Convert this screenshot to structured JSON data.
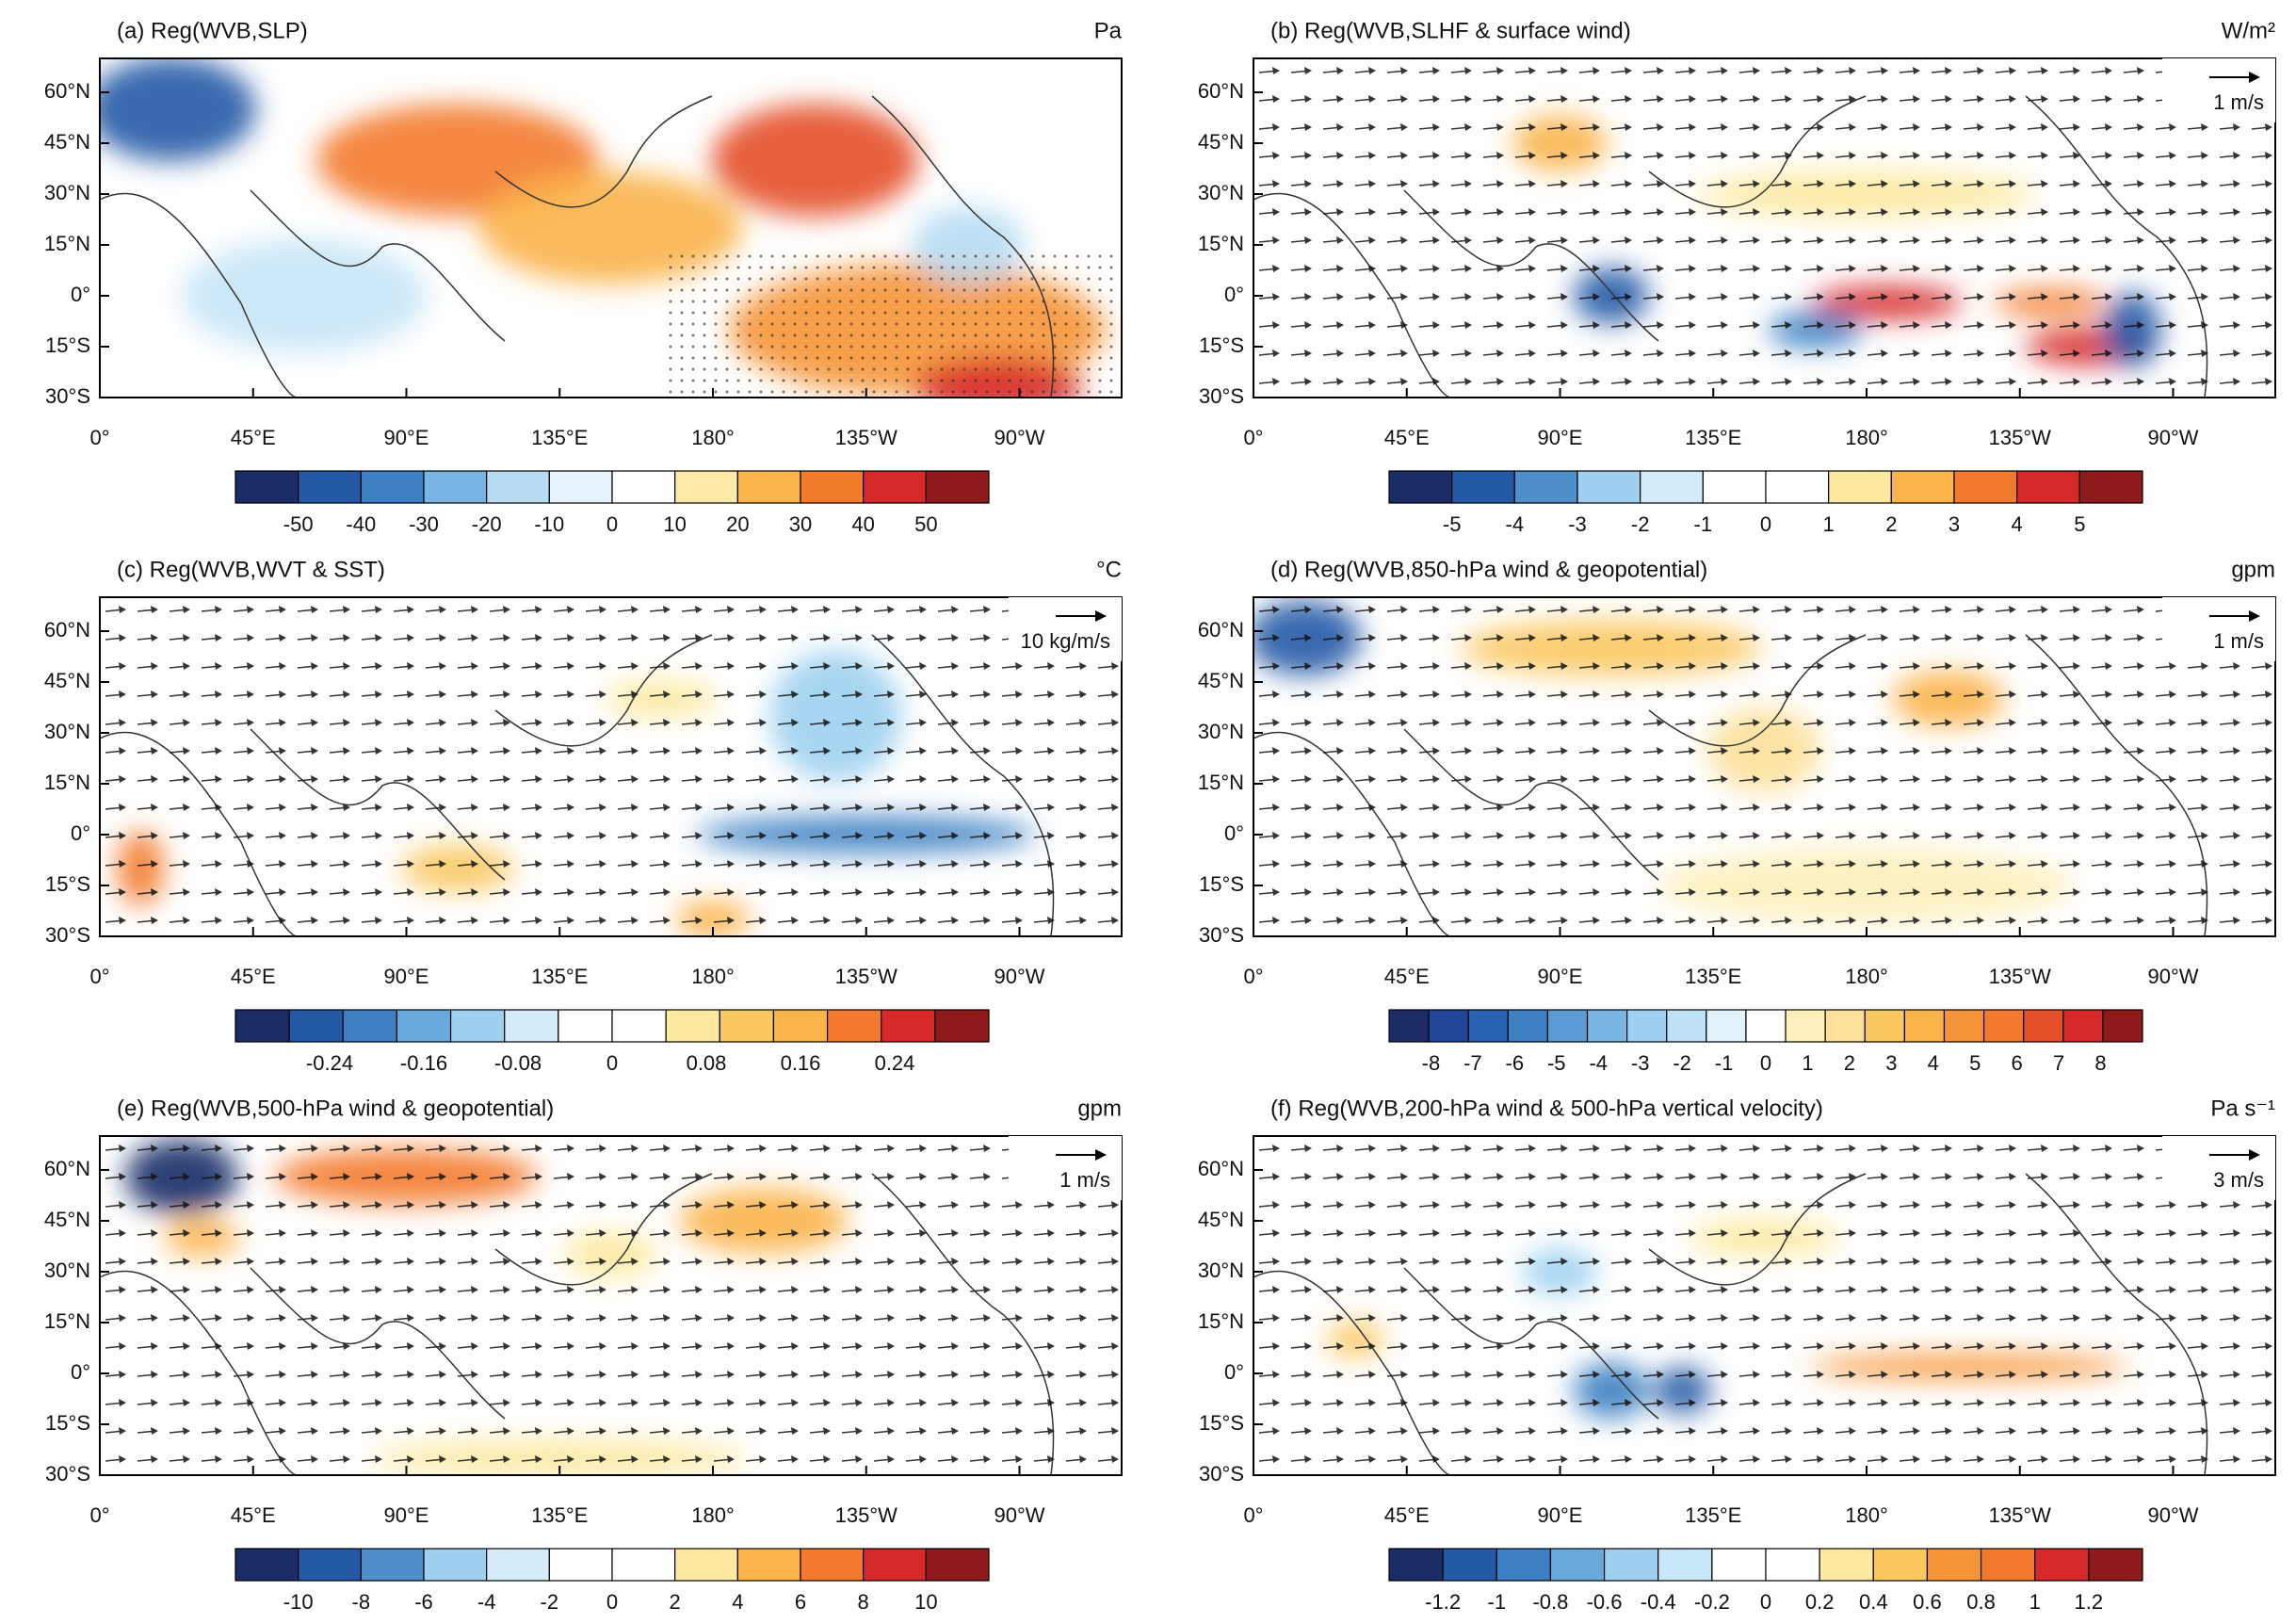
{
  "x_labels": [
    "0°",
    "45°E",
    "90°E",
    "135°E",
    "180°",
    "135°W",
    "90°W"
  ],
  "y_labels": [
    "60°N",
    "45°N",
    "30°N",
    "15°N",
    "0°",
    "15°S",
    "30°S"
  ],
  "panels": [
    {
      "title": "(a) Reg(WVB,SLP)",
      "unit": "Pa",
      "colorbar": {
        "labels": [
          -50,
          -40,
          -30,
          -20,
          -10,
          0,
          10,
          20,
          30,
          40,
          50
        ],
        "colors": [
          "#1b2c66",
          "#2459a6",
          "#3c7fc2",
          "#78b4e4",
          "#b7dbf2",
          "#e6f3fb",
          "#ffffff",
          "#fdeaa6",
          "#fbb54d",
          "#f37b2c",
          "#d6292a",
          "#8e1a1c"
        ]
      }
    },
    {
      "title": "(b) Reg(WVB,SLHF & surface wind)",
      "unit": "W/m²",
      "ref_vector": "1 m/s",
      "colorbar": {
        "labels": [
          -5,
          -4,
          -3,
          -2,
          -1,
          0,
          1,
          2,
          3,
          4,
          5
        ],
        "colors": [
          "#1b2c66",
          "#2459a6",
          "#4e8fcc",
          "#9fd0f0",
          "#d4ecf9",
          "#ffffff",
          "#ffffff",
          "#fde9a0",
          "#fbb44a",
          "#f37a2c",
          "#d6292a",
          "#8e1a1c"
        ]
      }
    },
    {
      "title": "(c) Reg(WVB,WVT & SST)",
      "unit": "°C",
      "ref_vector": "10 kg/m/s",
      "colorbar": {
        "labels": [
          -0.24,
          -0.16,
          -0.08,
          0,
          0.08,
          0.16,
          0.24
        ],
        "colors": [
          "#1b2c66",
          "#2459a6",
          "#3c7fc2",
          "#6aa9de",
          "#9fd0f0",
          "#d4ecf9",
          "#ffffff",
          "#ffffff",
          "#fde9a0",
          "#fbc860",
          "#fbb44a",
          "#f37a2c",
          "#d6292a",
          "#8e1a1c"
        ]
      }
    },
    {
      "title": "(d) Reg(WVB,850-hPa wind & geopotential)",
      "unit": "gpm",
      "ref_vector": "1 m/s",
      "colorbar": {
        "labels": [
          -8,
          -7,
          -6,
          -5,
          -4,
          -3,
          -2,
          -1,
          0,
          1,
          2,
          3,
          4,
          5,
          6,
          7,
          8
        ],
        "colors": [
          "#1b2c66",
          "#22469a",
          "#2a62b2",
          "#3c7fc2",
          "#5b9ad4",
          "#7ab6e4",
          "#9fd0f0",
          "#c0e2f6",
          "#e2f2fb",
          "#ffffff",
          "#fdf0bc",
          "#fde09a",
          "#fbc860",
          "#fbb44a",
          "#f69537",
          "#f37a2c",
          "#e4502a",
          "#d6292a",
          "#8e1a1c"
        ]
      }
    },
    {
      "title": "(e) Reg(WVB,500-hPa wind & geopotential)",
      "unit": "gpm",
      "ref_vector": "1 m/s",
      "colorbar": {
        "labels": [
          -10,
          -8,
          -6,
          -4,
          -2,
          0,
          2,
          4,
          6,
          8,
          10
        ],
        "colors": [
          "#1b2c66",
          "#2459a6",
          "#4e8fcc",
          "#9fd0f0",
          "#d4ecf9",
          "#ffffff",
          "#ffffff",
          "#fde9a0",
          "#fbb44a",
          "#f37a2c",
          "#d6292a",
          "#8e1a1c"
        ]
      }
    },
    {
      "title": "(f) Reg(WVB,200-hPa wind & 500-hPa vertical velocity)",
      "unit": "Pa s⁻¹",
      "ref_vector": "3 m/s",
      "colorbar": {
        "labels": [
          -1.2,
          -1,
          -0.8,
          -0.6,
          -0.4,
          -0.2,
          0,
          0.2,
          0.4,
          0.6,
          0.8,
          1,
          1.2
        ],
        "colors": [
          "#1b2c66",
          "#2459a6",
          "#3c7fc2",
          "#6aa9de",
          "#9fd0f0",
          "#c7e6f7",
          "#ffffff",
          "#ffffff",
          "#fde9a0",
          "#fbc860",
          "#f69537",
          "#f37a2c",
          "#d6292a",
          "#8e1a1c"
        ]
      }
    }
  ]
}
